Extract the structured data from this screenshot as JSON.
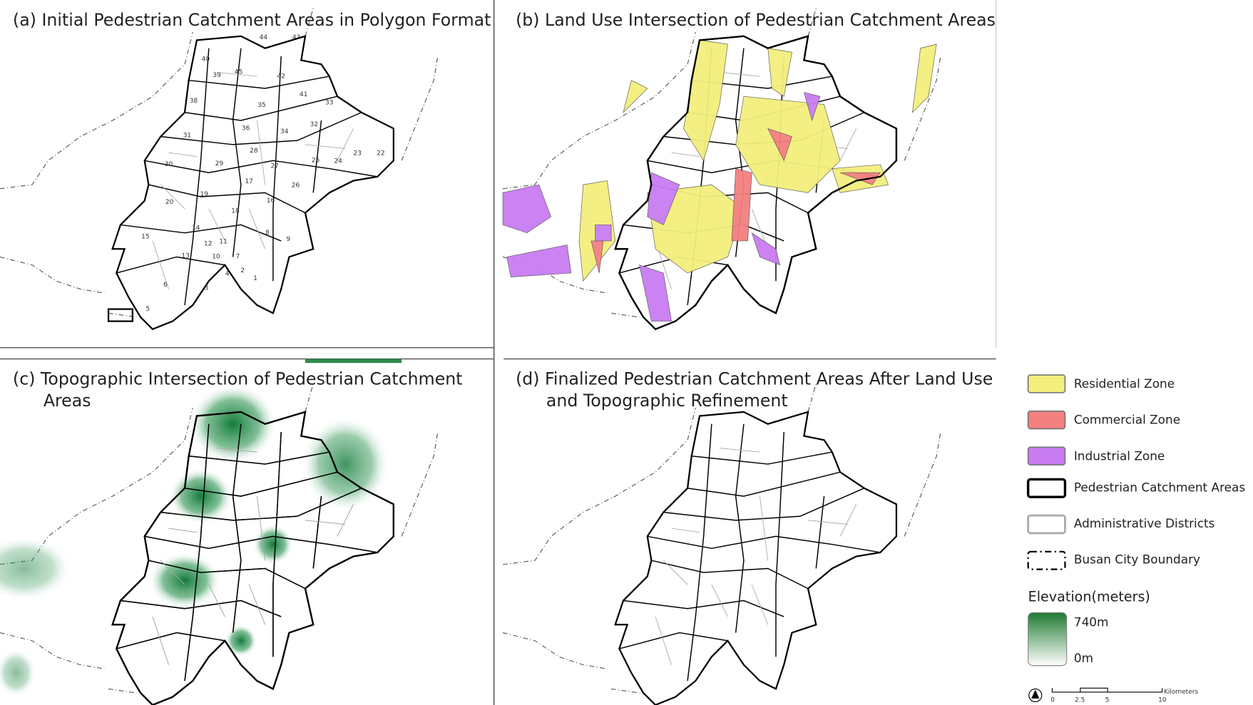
{
  "panels": [
    {
      "title": "(a) Initial Pedestrian Catchment Areas in Polygon Format",
      "district_labels": [
        "40",
        "44",
        "43",
        "39",
        "45",
        "42",
        "38",
        "35",
        "41",
        "33",
        "31",
        "36",
        "34",
        "32",
        "30",
        "29",
        "28",
        "27",
        "23",
        "22",
        "24",
        "25",
        "26",
        "19",
        "17",
        "16",
        "20",
        "18",
        "15",
        "14",
        "13",
        "12",
        "11",
        "10",
        "9",
        "8",
        "7",
        "6",
        "5",
        "4",
        "3",
        "2",
        "1"
      ]
    },
    {
      "title": "(b) Land Use Intersection of Pedestrian Catchment Areas"
    },
    {
      "title_lines": [
        "(c) Topographic Intersection of Pedestrian Catchment",
        "Areas"
      ]
    },
    {
      "title_lines": [
        "(d) Finalized Pedestrian Catchment Areas After Land Use",
        "and Topographic Refinement"
      ]
    }
  ],
  "legend": {
    "items": [
      {
        "label": "Residential Zone",
        "color": "#f3ef7c"
      },
      {
        "label": "Commercial Zone",
        "color": "#f47f7f"
      },
      {
        "label": "Industrial Zone",
        "color": "#c97cf2"
      },
      {
        "label": "Pedestrian Catchment Areas"
      },
      {
        "label": "Administrative Districts"
      },
      {
        "label": "Busan City Boundary"
      }
    ],
    "elevation": {
      "title": "Elevation(meters)",
      "max_label": "740m",
      "min_label": "0m"
    }
  },
  "scale_bar": {
    "labels": [
      "0",
      "2.5",
      "5",
      "10"
    ],
    "unit": "Kilometers"
  }
}
